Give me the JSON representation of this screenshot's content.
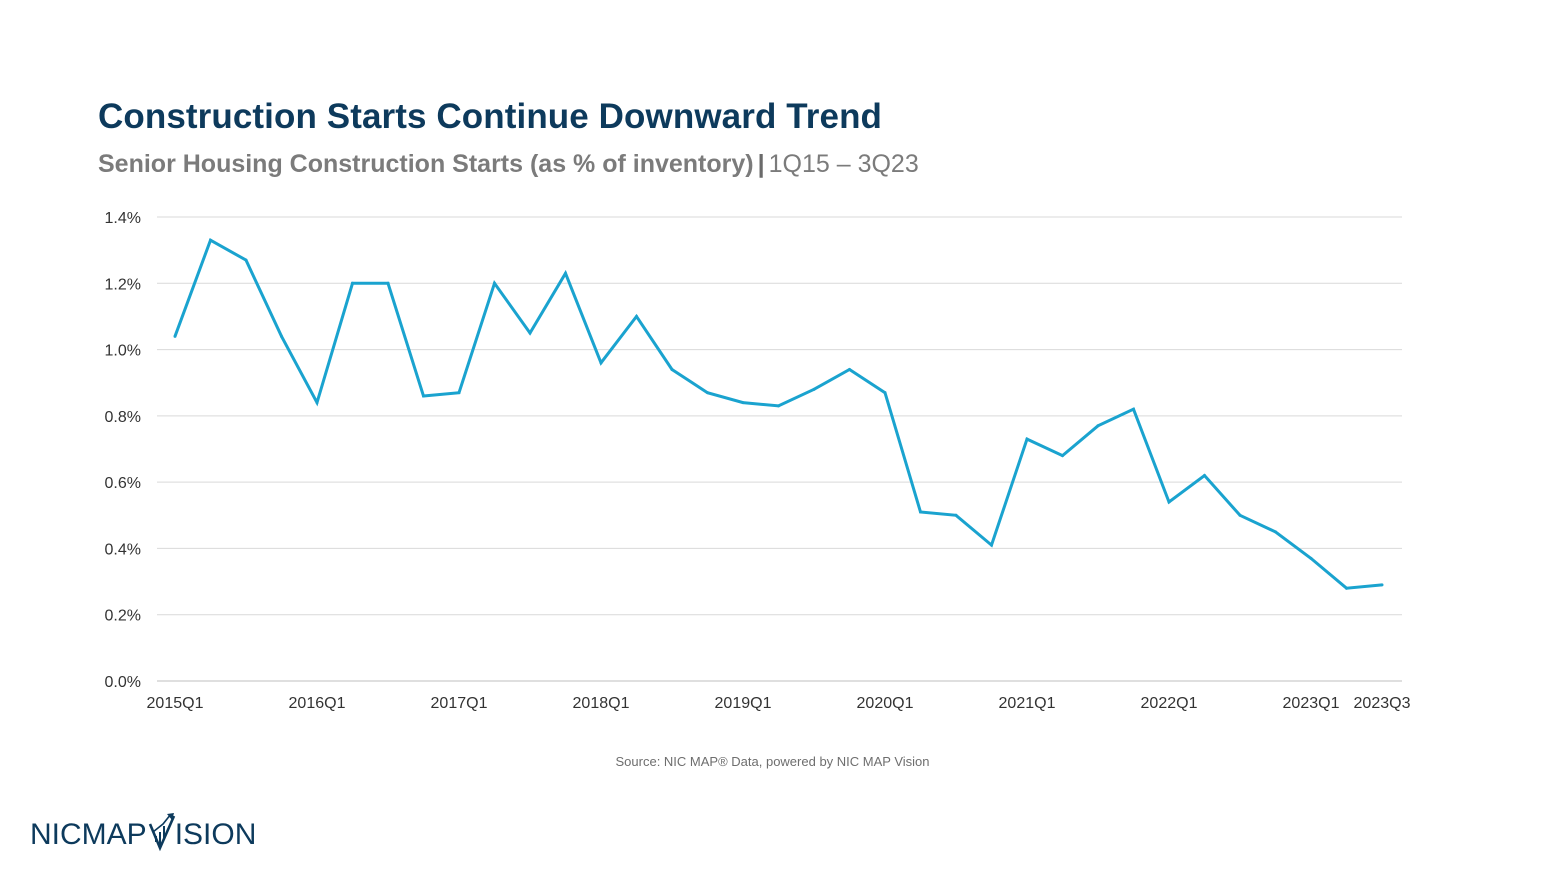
{
  "header": {
    "title": "Construction Starts Continue Downward Trend",
    "subtitle_main": "Senior Housing Construction Starts (as % of inventory)",
    "subtitle_separator": "|",
    "subtitle_range": "1Q15 – 3Q23"
  },
  "chart_data": {
    "type": "line",
    "x": [
      "2015Q1",
      "2015Q2",
      "2015Q3",
      "2015Q4",
      "2016Q1",
      "2016Q2",
      "2016Q3",
      "2016Q4",
      "2017Q1",
      "2017Q2",
      "2017Q3",
      "2017Q4",
      "2018Q1",
      "2018Q2",
      "2018Q3",
      "2018Q4",
      "2019Q1",
      "2019Q2",
      "2019Q3",
      "2019Q4",
      "2020Q1",
      "2020Q2",
      "2020Q3",
      "2020Q4",
      "2021Q1",
      "2021Q2",
      "2021Q3",
      "2021Q4",
      "2022Q1",
      "2022Q2",
      "2022Q3",
      "2022Q4",
      "2023Q1",
      "2023Q2",
      "2023Q3"
    ],
    "series": [
      {
        "values": [
          1.04,
          1.33,
          1.27,
          1.04,
          0.84,
          1.2,
          1.2,
          0.86,
          0.87,
          1.2,
          1.05,
          1.23,
          0.96,
          1.1,
          0.94,
          0.87,
          0.84,
          0.83,
          0.88,
          0.94,
          0.87,
          0.51,
          0.5,
          0.41,
          0.73,
          0.68,
          0.77,
          0.82,
          0.54,
          0.62,
          0.5,
          0.45,
          0.37,
          0.28,
          0.29
        ],
        "color": "#1aa3cf"
      }
    ],
    "x_tick_labels": [
      "2015Q1",
      "2016Q1",
      "2017Q1",
      "2018Q1",
      "2019Q1",
      "2020Q1",
      "2021Q1",
      "2022Q1",
      "2023Q1",
      "2023Q3"
    ],
    "y_ticks": [
      0.0,
      0.2,
      0.4,
      0.6,
      0.8,
      1.0,
      1.2,
      1.4
    ],
    "y_tick_labels": [
      "0.0%",
      "0.2%",
      "0.4%",
      "0.6%",
      "0.8%",
      "1.0%",
      "1.2%",
      "1.4%"
    ],
    "ylim": [
      0,
      1.4
    ],
    "grid": "horizontal",
    "legend": "none"
  },
  "footer": {
    "source": "Source: NIC MAP® Data, powered by NIC MAP Vision",
    "logo_left": "NICMAP",
    "logo_right": "ISION"
  },
  "colors": {
    "title": "#0d3a5c",
    "subtitle": "#7b7b7b",
    "line": "#1aa3cf",
    "grid": "#d9d9d9"
  }
}
